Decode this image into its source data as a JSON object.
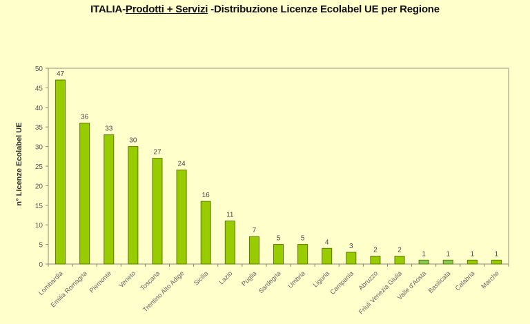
{
  "chart_data": {
    "type": "bar",
    "title_parts": {
      "prefix": "ITALIA-",
      "underlined": "Prodotti + Servizi",
      "suffix": " -Distribuzione Licenze Ecolabel UE per Regione"
    },
    "title": "ITALIA-Prodotti + Servizi -Distribuzione Licenze Ecolabel UE per Regione",
    "xlabel": "",
    "ylabel": "n° Licenze  Ecolabel  UE",
    "ylim": [
      0,
      50
    ],
    "yticks": [
      0,
      5,
      10,
      15,
      20,
      25,
      30,
      35,
      40,
      45,
      50
    ],
    "grid": false,
    "legend": null,
    "categories": [
      "Lombardia",
      "Emilia Romagna",
      "Piemonte",
      "Veneto",
      "Toscana",
      "Trentino Alto Adige",
      "Sicilia",
      "Lazio",
      "Puglia",
      "Sardegna",
      "Umbria",
      "Liguria",
      "Campania",
      "Abruzzo",
      "Friuli Venezia Giulia",
      "Valle d'Aosta",
      "Basilicata",
      "Calabria",
      "Marche"
    ],
    "values": [
      47,
      36,
      33,
      30,
      27,
      24,
      16,
      11,
      7,
      5,
      5,
      4,
      3,
      2,
      2,
      1,
      1,
      1,
      1
    ],
    "bar_colors": [
      "#99CC00",
      "#99CC00",
      "#99CC00",
      "#99CC00",
      "#99CC00",
      "#99CC00",
      "#99CC00",
      "#99CC00",
      "#99CC00",
      "#99CC00",
      "#99CC00",
      "#99CC00",
      "#99CC00",
      "#99CC00",
      "#99CC00",
      "#88CC55",
      "#88CC55",
      "#99CC00",
      "#99CC00"
    ]
  },
  "colors": {
    "background": "#FFFFCC",
    "bar": "#99CC00",
    "bar_light": "#88CC55",
    "bar_border": "#5A7A00",
    "axis": "#888877"
  }
}
